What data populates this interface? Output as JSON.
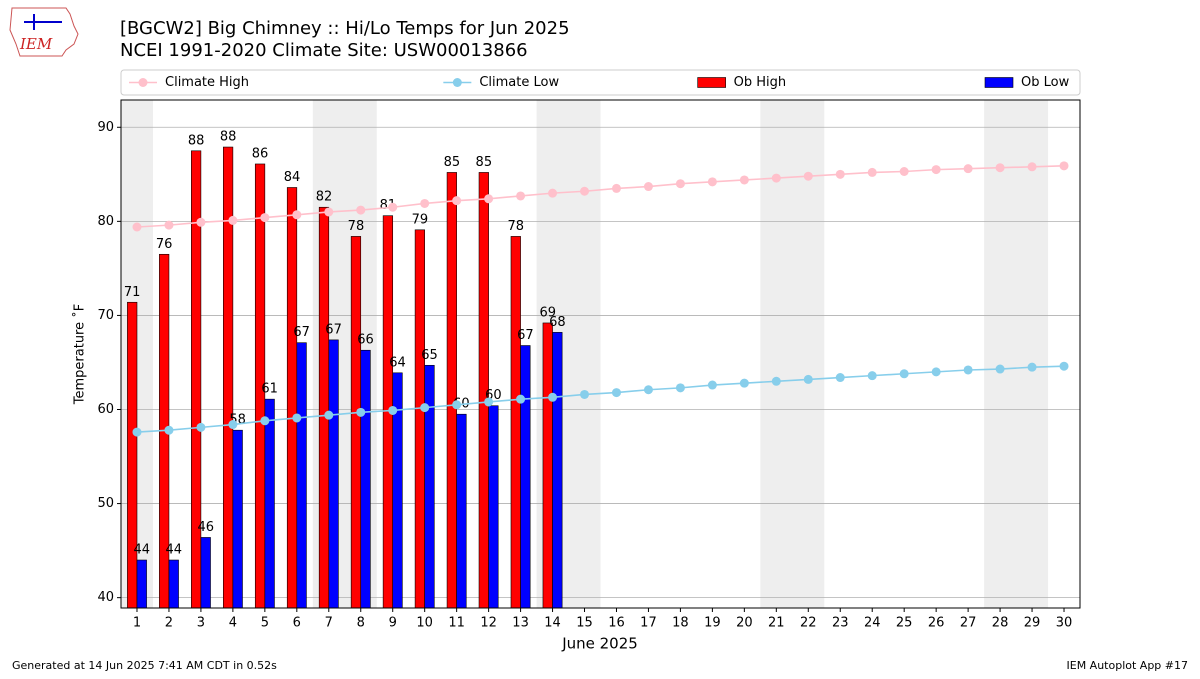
{
  "logo_text": "IEM",
  "footer_left": "Generated at 14 Jun 2025 7:41 AM CDT in 0.52s",
  "footer_right": "IEM Autoplot App #17",
  "chart_data": {
    "type": "bar",
    "title": "[BGCW2] Big Chimney :: Hi/Lo Temps for Jun 2025",
    "subtitle": "NCEI 1991-2020 Climate Site: USW00013866",
    "x_label": "June 2025",
    "y_label": "Temperature ˚F",
    "x": [
      1,
      2,
      3,
      4,
      5,
      6,
      7,
      8,
      9,
      10,
      11,
      12,
      13,
      14,
      15,
      16,
      17,
      18,
      19,
      20,
      21,
      22,
      23,
      24,
      25,
      26,
      27,
      28,
      29,
      30
    ],
    "xlim": [
      0.5,
      30.5
    ],
    "xticks": [
      1,
      2,
      3,
      4,
      5,
      6,
      7,
      8,
      9,
      10,
      11,
      12,
      13,
      14,
      15,
      16,
      17,
      18,
      19,
      20,
      21,
      22,
      23,
      24,
      25,
      26,
      27,
      28,
      29,
      30
    ],
    "ylim": [
      38.9,
      92.9
    ],
    "yticks": [
      40,
      50,
      60,
      70,
      80,
      90
    ],
    "grid": true,
    "legend_position": "top",
    "weekend_shading": [
      [
        0.5,
        1.5
      ],
      [
        6.5,
        8.5
      ],
      [
        13.5,
        15.5
      ],
      [
        20.5,
        22.5
      ],
      [
        27.5,
        29.5
      ]
    ],
    "series": [
      {
        "name": "Climate High",
        "type": "line",
        "color": "#ffc0cb",
        "values": [
          79.4,
          79.6,
          79.9,
          80.1,
          80.4,
          80.7,
          81.0,
          81.2,
          81.5,
          81.9,
          82.2,
          82.4,
          82.7,
          83.0,
          83.2,
          83.5,
          83.7,
          84.0,
          84.2,
          84.4,
          84.6,
          84.8,
          85.0,
          85.2,
          85.3,
          85.5,
          85.6,
          85.7,
          85.8,
          85.9
        ]
      },
      {
        "name": "Climate Low",
        "type": "line",
        "color": "#87ceeb",
        "values": [
          57.6,
          57.8,
          58.1,
          58.4,
          58.8,
          59.1,
          59.4,
          59.7,
          59.9,
          60.2,
          60.5,
          60.8,
          61.1,
          61.3,
          61.6,
          61.8,
          62.1,
          62.3,
          62.6,
          62.8,
          63.0,
          63.2,
          63.4,
          63.6,
          63.8,
          64.0,
          64.2,
          64.3,
          64.5,
          64.6
        ]
      },
      {
        "name": "Ob High",
        "type": "bar",
        "color": "#ff0000",
        "values": [
          71.4,
          76.5,
          87.5,
          87.9,
          86.1,
          83.6,
          81.5,
          78.4,
          80.6,
          79.1,
          85.2,
          85.2,
          78.4,
          69.2,
          null,
          null,
          null,
          null,
          null,
          null,
          null,
          null,
          null,
          null,
          null,
          null,
          null,
          null,
          null,
          null
        ],
        "value_labels": [
          "71",
          "76",
          "88",
          "88",
          "86",
          "84",
          "82",
          "78",
          "81",
          "79",
          "85",
          "85",
          "78",
          "69",
          null,
          null,
          null,
          null,
          null,
          null,
          null,
          null,
          null,
          null,
          null,
          null,
          null,
          null,
          null,
          null
        ]
      },
      {
        "name": "Ob Low",
        "type": "bar",
        "color": "#0000ff",
        "values": [
          44.0,
          44.0,
          46.4,
          57.8,
          61.1,
          67.1,
          67.4,
          66.3,
          63.9,
          64.7,
          59.5,
          60.4,
          66.8,
          68.2,
          null,
          null,
          null,
          null,
          null,
          null,
          null,
          null,
          null,
          null,
          null,
          null,
          null,
          null,
          null,
          null
        ],
        "value_labels": [
          "44",
          "44",
          "46",
          "58",
          "61",
          "67",
          "67",
          "66",
          "64",
          "65",
          "60",
          "60",
          "67",
          "68",
          null,
          null,
          null,
          null,
          null,
          null,
          null,
          null,
          null,
          null,
          null,
          null,
          null,
          null,
          null,
          null
        ]
      }
    ]
  }
}
